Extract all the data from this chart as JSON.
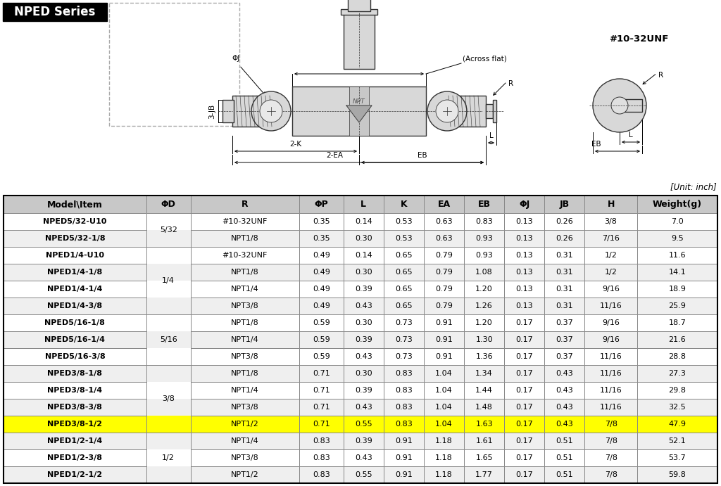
{
  "title": "NPED Series",
  "unit_note": "[Unit: inch]",
  "headers": [
    "Model\\Item",
    "ΦD",
    "R",
    "ΦP",
    "L",
    "K",
    "EA",
    "EB",
    "ΦJ",
    "JB",
    "H",
    "Weight(g)"
  ],
  "rows": [
    [
      "NPED5/32-U10",
      "5/32",
      "#10-32UNF",
      "0.35",
      "0.14",
      "0.53",
      "0.63",
      "0.83",
      "0.13",
      "0.26",
      "3/8",
      "7.0"
    ],
    [
      "NPED5/32-1/8",
      "5/32",
      "NPT1/8",
      "0.35",
      "0.30",
      "0.53",
      "0.63",
      "0.93",
      "0.13",
      "0.26",
      "7/16",
      "9.5"
    ],
    [
      "NPED1/4-U10",
      "1/4",
      "#10-32UNF",
      "0.49",
      "0.14",
      "0.65",
      "0.79",
      "0.93",
      "0.13",
      "0.31",
      "1/2",
      "11.6"
    ],
    [
      "NPED1/4-1/8",
      "1/4",
      "NPT1/8",
      "0.49",
      "0.30",
      "0.65",
      "0.79",
      "1.08",
      "0.13",
      "0.31",
      "1/2",
      "14.1"
    ],
    [
      "NPED1/4-1/4",
      "1/4",
      "NPT1/4",
      "0.49",
      "0.39",
      "0.65",
      "0.79",
      "1.20",
      "0.13",
      "0.31",
      "9/16",
      "18.9"
    ],
    [
      "NPED1/4-3/8",
      "1/4",
      "NPT3/8",
      "0.49",
      "0.43",
      "0.65",
      "0.79",
      "1.26",
      "0.13",
      "0.31",
      "11/16",
      "25.9"
    ],
    [
      "NPED5/16-1/8",
      "5/16",
      "NPT1/8",
      "0.59",
      "0.30",
      "0.73",
      "0.91",
      "1.20",
      "0.17",
      "0.37",
      "9/16",
      "18.7"
    ],
    [
      "NPED5/16-1/4",
      "5/16",
      "NPT1/4",
      "0.59",
      "0.39",
      "0.73",
      "0.91",
      "1.30",
      "0.17",
      "0.37",
      "9/16",
      "21.6"
    ],
    [
      "NPED5/16-3/8",
      "5/16",
      "NPT3/8",
      "0.59",
      "0.43",
      "0.73",
      "0.91",
      "1.36",
      "0.17",
      "0.37",
      "11/16",
      "28.8"
    ],
    [
      "NPED3/8-1/8",
      "3/8",
      "NPT1/8",
      "0.71",
      "0.30",
      "0.83",
      "1.04",
      "1.34",
      "0.17",
      "0.43",
      "11/16",
      "27.3"
    ],
    [
      "NPED3/8-1/4",
      "3/8",
      "NPT1/4",
      "0.71",
      "0.39",
      "0.83",
      "1.04",
      "1.44",
      "0.17",
      "0.43",
      "11/16",
      "29.8"
    ],
    [
      "NPED3/8-3/8",
      "3/8",
      "NPT3/8",
      "0.71",
      "0.43",
      "0.83",
      "1.04",
      "1.48",
      "0.17",
      "0.43",
      "11/16",
      "32.5"
    ],
    [
      "NPED3/8-1/2",
      "3/8",
      "NPT1/2",
      "0.71",
      "0.55",
      "0.83",
      "1.04",
      "1.63",
      "0.17",
      "0.43",
      "7/8",
      "47.9"
    ],
    [
      "NPED1/2-1/4",
      "1/2",
      "NPT1/4",
      "0.83",
      "0.39",
      "0.91",
      "1.18",
      "1.61",
      "0.17",
      "0.51",
      "7/8",
      "52.1"
    ],
    [
      "NPED1/2-3/8",
      "1/2",
      "NPT3/8",
      "0.83",
      "0.43",
      "0.91",
      "1.18",
      "1.65",
      "0.17",
      "0.51",
      "7/8",
      "53.7"
    ],
    [
      "NPED1/2-1/2",
      "1/2",
      "NPT1/2",
      "0.83",
      "0.55",
      "0.91",
      "1.18",
      "1.77",
      "0.17",
      "0.51",
      "7/8",
      "59.8"
    ]
  ],
  "highlighted_row": 12,
  "highlight_color": "#FFFF00",
  "phid_span_groups": [
    {
      "label": "5/32",
      "rows": [
        0,
        1
      ]
    },
    {
      "label": "1/4",
      "rows": [
        2,
        3,
        4,
        5
      ]
    },
    {
      "label": "5/16",
      "rows": [
        6,
        7,
        8
      ]
    },
    {
      "label": "3/8",
      "rows": [
        9,
        10,
        11,
        12
      ]
    },
    {
      "label": "1/2",
      "rows": [
        13,
        14,
        15
      ]
    }
  ],
  "header_bg": "#C8C8C8",
  "header_fg": "#000000",
  "table_bg_odd": "#FFFFFF",
  "table_bg_even": "#EFEFEF",
  "border_color": "#888888",
  "title_bg": "#000000",
  "title_fg": "#FFFFFF",
  "font_size_header": 9.0,
  "font_size_data": 8.0,
  "col_widths": [
    1.42,
    0.44,
    1.08,
    0.44,
    0.4,
    0.4,
    0.4,
    0.4,
    0.4,
    0.4,
    0.52,
    0.8
  ]
}
